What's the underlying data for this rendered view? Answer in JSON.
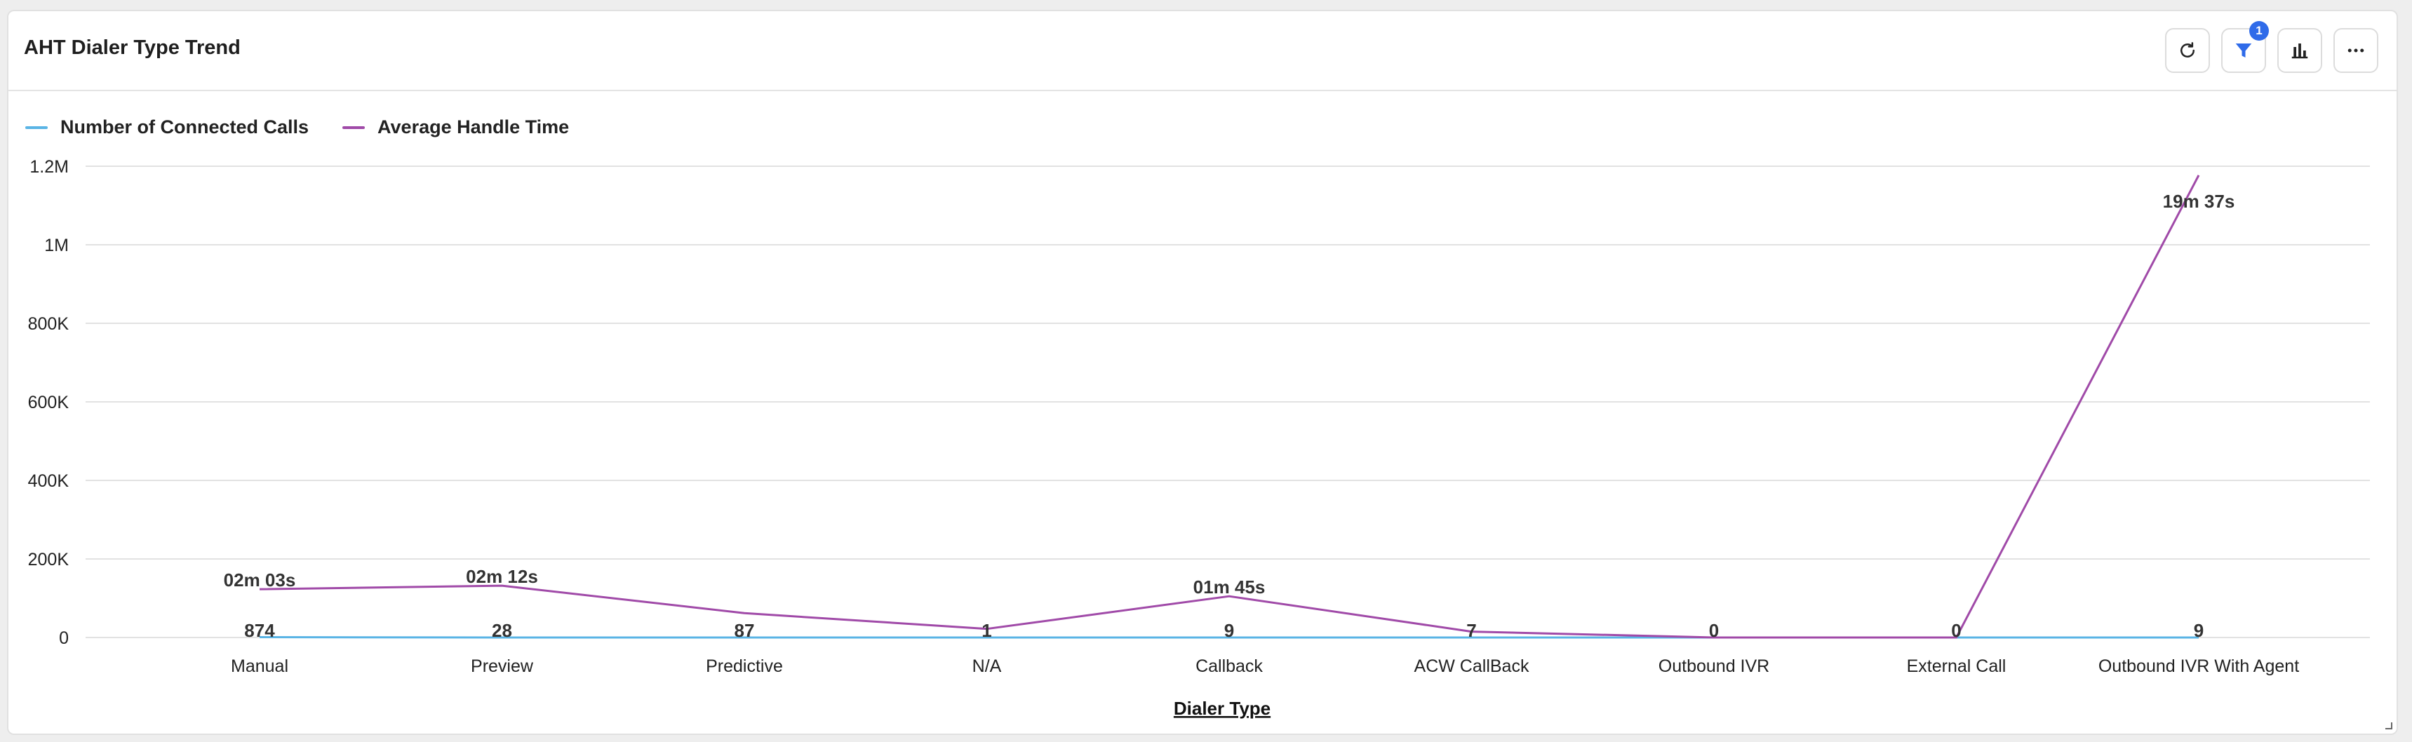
{
  "widget": {
    "title": "AHT Dialer Type Trend",
    "filter_badge": "1",
    "toolbar": {
      "refresh_icon": "refresh-icon",
      "filter_icon": "filter-icon",
      "chart_type_icon": "bar-chart-icon",
      "more_icon": "more-icon"
    }
  },
  "colors": {
    "connected_calls": "#5ab4e5",
    "average_handle_time": "#a04aa8",
    "badge": "#2f6be9",
    "grid": "#e2e2e2"
  },
  "chart_data": {
    "type": "line",
    "xlabel": "Dialer Type",
    "ylabel": "",
    "ylim": [
      0,
      1200000
    ],
    "y_ticks": [
      "0",
      "200K",
      "400K",
      "600K",
      "800K",
      "1M",
      "1.2M"
    ],
    "y_tick_values": [
      0,
      200000,
      400000,
      600000,
      800000,
      1000000,
      1200000
    ],
    "grid": true,
    "legend_position": "top-left",
    "categories": [
      "Manual",
      "Preview",
      "Predictive",
      "N/A",
      "Callback",
      "ACW CallBack",
      "Outbound IVR",
      "External Call",
      "Outbound IVR With Agent"
    ],
    "series": [
      {
        "name": "Number of Connected Calls",
        "values": [
          874,
          28,
          87,
          1,
          9,
          7,
          0,
          0,
          9
        ],
        "labels": [
          "874",
          "28",
          "87",
          "1",
          "9",
          "7",
          "0",
          "0",
          "9"
        ]
      },
      {
        "name": "Average Handle Time",
        "values": [
          123000,
          132000,
          62000,
          22000,
          105000,
          15000,
          0,
          0,
          1177000
        ],
        "labels": [
          "02m 03s",
          "02m 12s",
          "",
          "",
          "01m 45s",
          "",
          "",
          "",
          "19m 37s"
        ]
      }
    ]
  }
}
